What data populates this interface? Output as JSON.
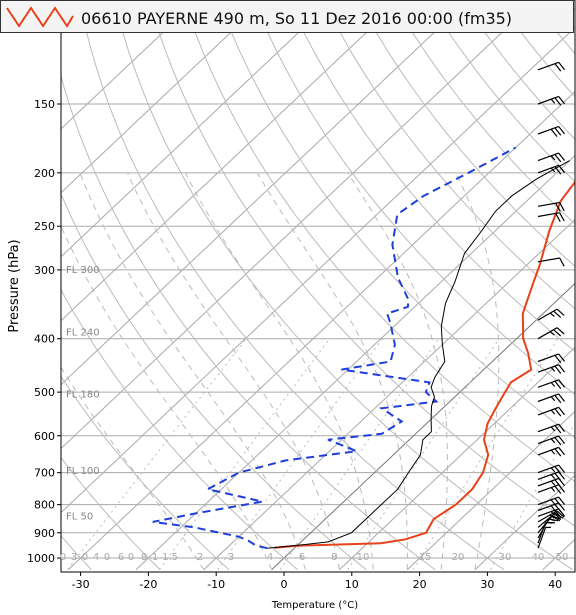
{
  "title": "06610 PAYERNE 490 m, So 11 Dez 2016 00:00 (fm35)",
  "colors": {
    "temperature": "#e8421a",
    "dewpoint": "#1f3fdc",
    "parcel": "#000000",
    "grid": "#999999"
  },
  "chart_data": {
    "type": "line",
    "title": "06610 PAYERNE 490 m, So 11 Dez 2016 00:00 (fm35)",
    "xlabel": "Temperature (°C)",
    "ylabel": "Pressure (hPa)",
    "xlim": [
      -35,
      42
    ],
    "ylim": [
      1000,
      100
    ],
    "x_ticks": [
      "-30",
      "-20",
      "-10",
      "0",
      "10",
      "20",
      "30",
      "40"
    ],
    "y_ticks": [
      "150",
      "200",
      "250",
      "300",
      "400",
      "500",
      "600",
      "700",
      "800",
      "900",
      "1000"
    ],
    "flight_levels": [
      {
        "label": "FL 300",
        "p": 300
      },
      {
        "label": "FL 240",
        "p": 390
      },
      {
        "label": "FL 180",
        "p": 505
      },
      {
        "label": "FL 100",
        "p": 695
      },
      {
        "label": "FL 50",
        "p": 840
      }
    ],
    "mixing_ratio_labels": [
      "0",
      "3",
      "0",
      "4",
      "0",
      "6",
      "0",
      "8",
      "1",
      "1.5",
      "2",
      "3",
      "4",
      "6",
      "8",
      "10",
      "15",
      "20",
      "30",
      "40",
      "50"
    ],
    "series": [
      {
        "name": "Temperature",
        "points": [
          [
            -3,
            958
          ],
          [
            0,
            950
          ],
          [
            6,
            945
          ],
          [
            12,
            940
          ],
          [
            15,
            925
          ],
          [
            17,
            900
          ],
          [
            16,
            850
          ],
          [
            17,
            800
          ],
          [
            17,
            750
          ],
          [
            16,
            700
          ],
          [
            14,
            650
          ],
          [
            11,
            610
          ],
          [
            9,
            570
          ],
          [
            8,
            540
          ],
          [
            7,
            510
          ],
          [
            6,
            480
          ],
          [
            7,
            455
          ],
          [
            4,
            425
          ],
          [
            1,
            400
          ],
          [
            -3,
            360
          ],
          [
            -6,
            320
          ],
          [
            -8,
            295
          ],
          [
            -12,
            255
          ],
          [
            -15,
            225
          ],
          [
            -16,
            205
          ],
          [
            -15,
            195
          ],
          [
            -13,
            185
          ],
          [
            -10,
            175
          ],
          [
            -9,
            165
          ],
          [
            -3,
            150
          ],
          [
            -1,
            140
          ],
          [
            3,
            130
          ],
          [
            6,
            117
          ],
          [
            7,
            110
          ]
        ]
      },
      {
        "name": "Dewpoint",
        "points": [
          [
            -4,
            960
          ],
          [
            -6,
            950
          ],
          [
            -8,
            930
          ],
          [
            -10,
            915
          ],
          [
            -18,
            880
          ],
          [
            -25,
            860
          ],
          [
            -20,
            830
          ],
          [
            -12,
            790
          ],
          [
            -22,
            750
          ],
          [
            -20,
            700
          ],
          [
            -15,
            665
          ],
          [
            -6,
            640
          ],
          [
            -12,
            610
          ],
          [
            -5,
            595
          ],
          [
            -4,
            565
          ],
          [
            -9,
            535
          ],
          [
            -2,
            520
          ],
          [
            -5,
            500
          ],
          [
            -6,
            480
          ],
          [
            -21,
            455
          ],
          [
            -15,
            440
          ],
          [
            -17,
            410
          ],
          [
            -21,
            375
          ],
          [
            -23,
            360
          ],
          [
            -21,
            350
          ],
          [
            -22,
            340
          ],
          [
            -27,
            310
          ],
          [
            -33,
            270
          ],
          [
            -37,
            238
          ],
          [
            -36,
            220
          ],
          [
            -33,
            200
          ],
          [
            -30,
            180
          ]
        ]
      },
      {
        "name": "Parcel",
        "points": [
          [
            -4,
            960
          ],
          [
            1,
            945
          ],
          [
            4,
            935
          ],
          [
            6,
            900
          ],
          [
            6,
            850
          ],
          [
            6,
            800
          ],
          [
            6,
            750
          ],
          [
            5,
            700
          ],
          [
            4,
            650
          ],
          [
            2,
            610
          ],
          [
            2,
            590
          ],
          [
            0,
            560
          ],
          [
            -2,
            530
          ],
          [
            -3,
            510
          ],
          [
            -5,
            490
          ],
          [
            -6,
            470
          ],
          [
            -7,
            440
          ],
          [
            -10,
            410
          ],
          [
            -13,
            380
          ],
          [
            -16,
            345
          ],
          [
            -18,
            315
          ],
          [
            -21,
            280
          ],
          [
            -22,
            255
          ],
          [
            -23,
            235
          ],
          [
            -23,
            220
          ],
          [
            -22,
            205
          ],
          [
            -20,
            190
          ]
        ]
      }
    ],
    "wind_barbs": [
      {
        "p": 960,
        "dir": 200,
        "spd": 5
      },
      {
        "p": 940,
        "dir": 200,
        "spd": 10
      },
      {
        "p": 920,
        "dir": 210,
        "spd": 15
      },
      {
        "p": 900,
        "dir": 220,
        "spd": 15
      },
      {
        "p": 880,
        "dir": 230,
        "spd": 20
      },
      {
        "p": 860,
        "dir": 240,
        "spd": 25
      },
      {
        "p": 840,
        "dir": 250,
        "spd": 25
      },
      {
        "p": 820,
        "dir": 250,
        "spd": 30
      },
      {
        "p": 800,
        "dir": 250,
        "spd": 30
      },
      {
        "p": 760,
        "dir": 250,
        "spd": 25
      },
      {
        "p": 740,
        "dir": 250,
        "spd": 25
      },
      {
        "p": 720,
        "dir": 250,
        "spd": 25
      },
      {
        "p": 700,
        "dir": 250,
        "spd": 25
      },
      {
        "p": 650,
        "dir": 250,
        "spd": 25
      },
      {
        "p": 620,
        "dir": 250,
        "spd": 25
      },
      {
        "p": 590,
        "dir": 250,
        "spd": 25
      },
      {
        "p": 550,
        "dir": 250,
        "spd": 25
      },
      {
        "p": 520,
        "dir": 250,
        "spd": 25
      },
      {
        "p": 490,
        "dir": 250,
        "spd": 25
      },
      {
        "p": 460,
        "dir": 250,
        "spd": 25
      },
      {
        "p": 440,
        "dir": 250,
        "spd": 20
      },
      {
        "p": 400,
        "dir": 240,
        "spd": 25
      },
      {
        "p": 370,
        "dir": 240,
        "spd": 25
      },
      {
        "p": 290,
        "dir": 260,
        "spd": 10
      },
      {
        "p": 240,
        "dir": 260,
        "spd": 20
      },
      {
        "p": 230,
        "dir": 260,
        "spd": 20
      },
      {
        "p": 200,
        "dir": 250,
        "spd": 25
      },
      {
        "p": 190,
        "dir": 250,
        "spd": 25
      },
      {
        "p": 170,
        "dir": 250,
        "spd": 30
      },
      {
        "p": 150,
        "dir": 250,
        "spd": 25
      },
      {
        "p": 130,
        "dir": 250,
        "spd": 20
      },
      {
        "p": 110,
        "dir": 250,
        "spd": 20
      }
    ]
  }
}
